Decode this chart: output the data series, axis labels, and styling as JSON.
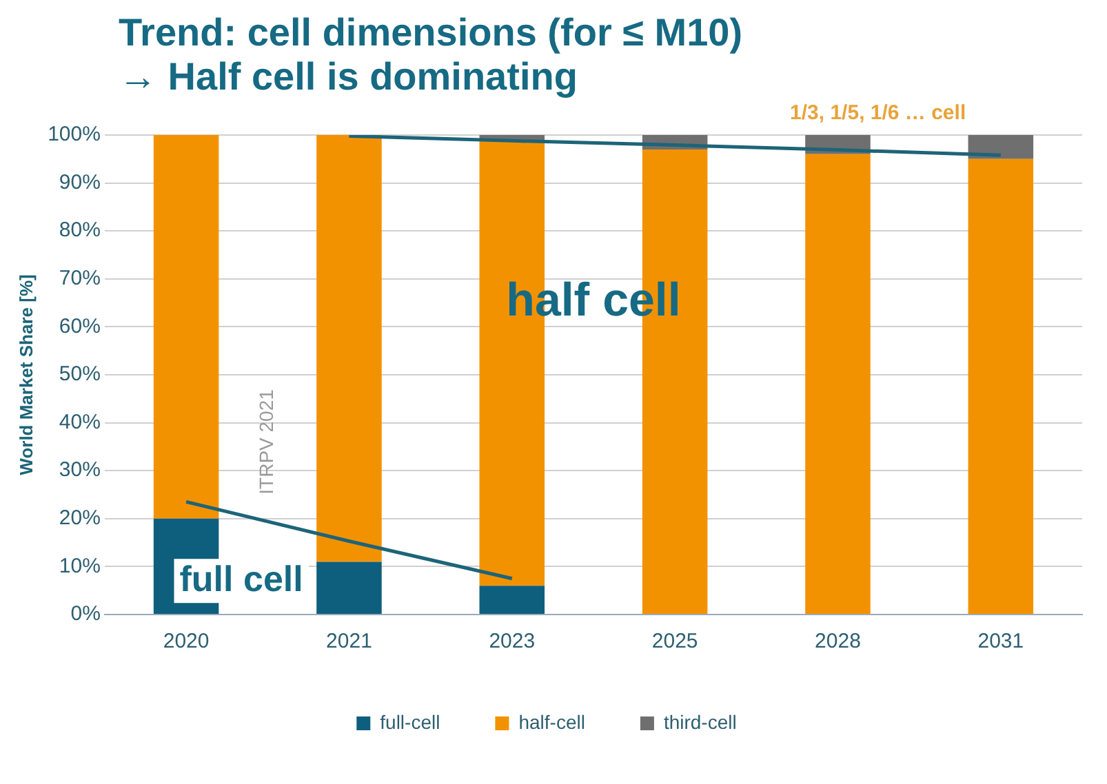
{
  "chart_data": {
    "type": "bar",
    "title": "Trend: cell dimensions (for ≤ M10)",
    "subtitle": "→ Half cell is dominating",
    "ylabel": "World Market Share [%]",
    "categories": [
      "2020",
      "2021",
      "2023",
      "2025",
      "2028",
      "2031"
    ],
    "stacked": true,
    "series": [
      {
        "name": "full-cell",
        "color": "#0e5f7e",
        "values": [
          20,
          11,
          6,
          0,
          0,
          0
        ]
      },
      {
        "name": "half-cell",
        "color": "#f39200",
        "values": [
          80,
          89,
          93,
          97,
          96,
          95
        ]
      },
      {
        "name": "third-cell",
        "color": "#6f6f6f",
        "values": [
          0,
          0,
          1,
          3,
          4,
          5
        ]
      },
      {
        "type": "line",
        "color": "#1d6478",
        "values": [
          23.5,
          15.3,
          7.5,
          null,
          null,
          null
        ]
      },
      {
        "type": "line",
        "color": "#1d6478",
        "values": [
          null,
          99.8,
          98.8,
          97.9,
          96.9,
          95.8
        ]
      }
    ],
    "ylim": [
      0,
      100
    ],
    "yticks": [
      {
        "value": 0,
        "label": "0%"
      },
      {
        "value": 10,
        "label": "10%"
      },
      {
        "value": 20,
        "label": "20%"
      },
      {
        "value": 30,
        "label": "30%"
      },
      {
        "value": 40,
        "label": "40%"
      },
      {
        "value": 50,
        "label": "50%"
      },
      {
        "value": 60,
        "label": "60%"
      },
      {
        "value": 70,
        "label": "70%"
      },
      {
        "value": 80,
        "label": "80%"
      },
      {
        "value": 90,
        "label": "90%"
      },
      {
        "value": 100,
        "label": "100%"
      }
    ],
    "grid": "y",
    "legend": "bottom",
    "marker": "none",
    "annotations": [
      "half cell",
      "full cell",
      "1/3, 1/5, 1/6 … cell",
      "ITRPV 2021"
    ]
  }
}
